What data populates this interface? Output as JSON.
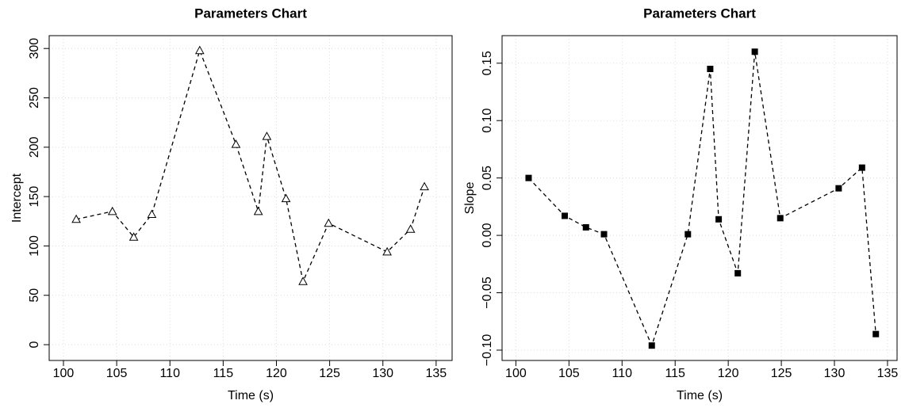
{
  "chart_data": [
    {
      "type": "line",
      "title": "Parameters Chart",
      "x_label": "Time (s)",
      "y_label": "Intercept",
      "x": [
        101.2,
        104.6,
        106.6,
        108.3,
        112.8,
        116.2,
        118.3,
        119.1,
        120.9,
        122.5,
        124.9,
        130.4,
        132.6,
        133.9
      ],
      "values": [
        127,
        135,
        109,
        132,
        298,
        203,
        135,
        211,
        148,
        64,
        123,
        94,
        117,
        160
      ],
      "color": "#000000",
      "marker": "triangle",
      "line_style": "dashed",
      "grid": true,
      "xlim": [
        98.66,
        136.5
      ],
      "xticks": [
        100,
        105,
        110,
        115,
        120,
        125,
        130,
        135
      ],
      "ylim": [
        -16,
        313
      ],
      "yticks": [
        0,
        50,
        100,
        150,
        200,
        250,
        300
      ]
    },
    {
      "type": "line",
      "title": "Parameters Chart",
      "x_label": "Time (s)",
      "y_label": "Slope",
      "x": [
        101.2,
        104.6,
        106.6,
        108.3,
        112.8,
        116.2,
        118.3,
        119.1,
        120.9,
        122.5,
        124.9,
        130.4,
        132.6,
        133.9
      ],
      "values": [
        0.05,
        0.017,
        0.007,
        0.001,
        -0.096,
        0.001,
        0.145,
        0.014,
        -0.033,
        0.16,
        0.015,
        0.041,
        0.059,
        -0.086
      ],
      "color": "#000000",
      "marker": "square",
      "line_style": "dashed",
      "grid": true,
      "xlim": [
        98.7,
        135.9
      ],
      "xticks": [
        100,
        105,
        110,
        115,
        120,
        125,
        130,
        135
      ],
      "ylim": [
        -0.109,
        0.174
      ],
      "yticks": [
        {
          "value": -0.1,
          "label": "−0.10"
        },
        {
          "value": -0.05,
          "label": "−0.05"
        },
        {
          "value": 0,
          "label": "0.00"
        },
        {
          "value": 0.05,
          "label": "0.05"
        },
        {
          "value": 0.1,
          "label": "0.10"
        },
        {
          "value": 0.15,
          "label": "0.15"
        }
      ]
    }
  ]
}
